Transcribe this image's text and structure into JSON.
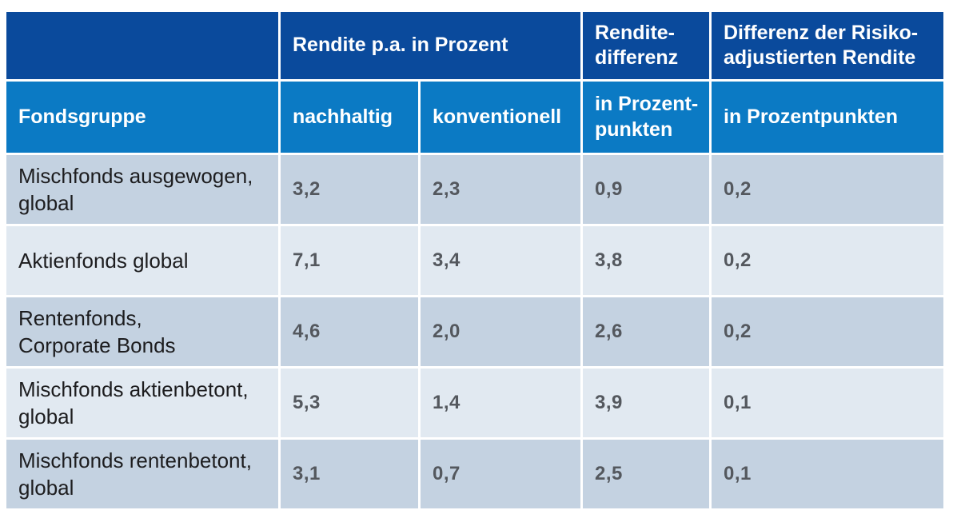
{
  "colors": {
    "page_bg": "#ffffff",
    "header_navy": "#0a4a9c",
    "header_azure": "#0b7ac4",
    "row_dark": "#c4d2e1",
    "row_light": "#e1e9f1",
    "label_dark": "#1d1d1f",
    "number_gray": "#54585e"
  },
  "table": {
    "header_row_1": {
      "corner": "",
      "rendite_group": "Rendite p.a. in Prozent",
      "renditedifferenz": "Rendite-\ndifferenz",
      "risiko_differenz": "Differenz der Risiko-\nadjustierten Rendite"
    },
    "header_row_2": {
      "fondsgruppe": "Fondsgruppe",
      "nachhaltig": "nachhaltig",
      "konventionell": "konventionell",
      "prozentpunkten_split": "in Prozent-\npunkten",
      "prozentpunkten": "in Prozentpunkten"
    },
    "rows": [
      {
        "label": "Mischfonds ausgewogen,\nglobal",
        "nachhaltig": "3,2",
        "konventionell": "2,3",
        "renditedifferenz": "0,9",
        "risikodifferenz": "0,2"
      },
      {
        "label": "Aktienfonds global",
        "nachhaltig": "7,1",
        "konventionell": "3,4",
        "renditedifferenz": "3,8",
        "risikodifferenz": "0,2"
      },
      {
        "label": "Rentenfonds,\nCorporate Bonds",
        "nachhaltig": "4,6",
        "konventionell": "2,0",
        "renditedifferenz": "2,6",
        "risikodifferenz": "0,2"
      },
      {
        "label": "Mischfonds aktienbetont,\nglobal",
        "nachhaltig": "5,3",
        "konventionell": "1,4",
        "renditedifferenz": "3,9",
        "risikodifferenz": "0,1"
      },
      {
        "label": "Mischfonds rentenbetont,\nglobal",
        "nachhaltig": "3,1",
        "konventionell": "0,7",
        "renditedifferenz": "2,5",
        "risikodifferenz": "0,1"
      }
    ]
  },
  "chart_data": {
    "type": "table",
    "title": "",
    "columns": [
      "Fondsgruppe",
      "Rendite p.a. in Prozent - nachhaltig",
      "Rendite p.a. in Prozent - konventionell",
      "Renditedifferenz in Prozentpunkten",
      "Differenz der Risiko-adjustierten Rendite in Prozentpunkten"
    ],
    "rows": [
      [
        "Mischfonds ausgewogen, global",
        3.2,
        2.3,
        0.9,
        0.2
      ],
      [
        "Aktienfonds global",
        7.1,
        3.4,
        3.8,
        0.2
      ],
      [
        "Rentenfonds, Corporate Bonds",
        4.6,
        2.0,
        2.6,
        0.2
      ],
      [
        "Mischfonds aktienbetont, global",
        5.3,
        1.4,
        3.9,
        0.1
      ],
      [
        "Mischfonds rentenbetont, global",
        3.1,
        0.7,
        2.5,
        0.1
      ]
    ]
  }
}
